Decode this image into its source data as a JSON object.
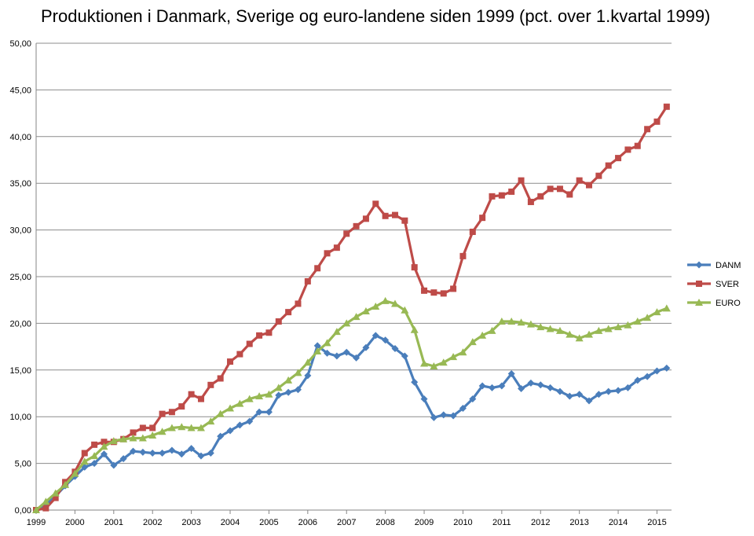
{
  "chart_data": {
    "type": "line",
    "title": "Produktionen i Danmark, Sverige og euro-landene siden 1999 (pct. over 1.kvartal 1999)",
    "ylim": [
      0,
      50
    ],
    "ytick_labels": [
      "0,00",
      "5,00",
      "10,00",
      "15,00",
      "20,00",
      "25,00",
      "30,00",
      "35,00",
      "40,00",
      "45,00",
      "50,00"
    ],
    "ytick_values": [
      0,
      5,
      10,
      15,
      20,
      25,
      30,
      35,
      40,
      45,
      50
    ],
    "xlim": [
      1999,
      2015.375
    ],
    "xtick_labels": [
      "1999",
      "2000",
      "2001",
      "2002",
      "2003",
      "2004",
      "2005",
      "2006",
      "2007",
      "2008",
      "2009",
      "2010",
      "2011",
      "2012",
      "2013",
      "2014",
      "2015"
    ],
    "xtick_values": [
      1999,
      2000,
      2001,
      2002,
      2003,
      2004,
      2005,
      2006,
      2007,
      2008,
      2009,
      2010,
      2011,
      2012,
      2013,
      2014,
      2015
    ],
    "grid": "horizontal",
    "legend_position": "right",
    "x": [
      1999.0,
      1999.25,
      1999.5,
      1999.75,
      2000.0,
      2000.25,
      2000.5,
      2000.75,
      2001.0,
      2001.25,
      2001.5,
      2001.75,
      2002.0,
      2002.25,
      2002.5,
      2002.75,
      2003.0,
      2003.25,
      2003.5,
      2003.75,
      2004.0,
      2004.25,
      2004.5,
      2004.75,
      2005.0,
      2005.25,
      2005.5,
      2005.75,
      2006.0,
      2006.25,
      2006.5,
      2006.75,
      2007.0,
      2007.25,
      2007.5,
      2007.75,
      2008.0,
      2008.25,
      2008.5,
      2008.75,
      2009.0,
      2009.25,
      2009.5,
      2009.75,
      2010.0,
      2010.25,
      2010.5,
      2010.75,
      2011.0,
      2011.25,
      2011.5,
      2011.75,
      2012.0,
      2012.25,
      2012.5,
      2012.75,
      2013.0,
      2013.25,
      2013.5,
      2013.75,
      2014.0,
      2014.25,
      2014.5,
      2014.75,
      2015.0,
      2015.25
    ],
    "series": [
      {
        "name": "DANM",
        "color": "#4a7ebb",
        "marker": "diamond",
        "values": [
          0.0,
          0.6,
          1.5,
          2.6,
          3.6,
          4.6,
          5.0,
          6.0,
          4.8,
          5.5,
          6.3,
          6.2,
          6.1,
          6.1,
          6.4,
          6.0,
          6.6,
          5.8,
          6.1,
          7.9,
          8.5,
          9.1,
          9.5,
          10.5,
          10.5,
          12.3,
          12.6,
          12.9,
          14.4,
          17.6,
          16.8,
          16.5,
          16.9,
          16.3,
          17.4,
          18.7,
          18.2,
          17.3,
          16.5,
          13.7,
          11.9,
          9.9,
          10.2,
          10.1,
          10.9,
          11.9,
          13.3,
          13.1,
          13.3,
          14.6,
          13.0,
          13.6,
          13.4,
          13.1,
          12.7,
          12.2,
          12.4,
          11.7,
          12.4,
          12.7,
          12.8,
          13.1,
          13.9,
          14.3,
          14.9,
          15.2
        ]
      },
      {
        "name": "SVER",
        "color": "#be4b48",
        "marker": "square",
        "values": [
          0.0,
          0.2,
          1.3,
          3.0,
          4.1,
          6.1,
          7.0,
          7.3,
          7.3,
          7.6,
          8.3,
          8.8,
          8.8,
          10.3,
          10.5,
          11.1,
          12.4,
          11.9,
          13.4,
          14.1,
          15.9,
          16.7,
          17.8,
          18.7,
          19.0,
          20.2,
          21.2,
          22.1,
          24.5,
          25.9,
          27.5,
          28.1,
          29.6,
          30.4,
          31.2,
          32.8,
          31.5,
          31.6,
          31.0,
          26.0,
          23.5,
          23.3,
          23.2,
          23.7,
          27.2,
          29.8,
          31.3,
          33.6,
          33.7,
          34.1,
          35.3,
          33.0,
          33.6,
          34.4,
          34.4,
          33.8,
          35.3,
          34.8,
          35.8,
          36.9,
          37.7,
          38.6,
          39.0,
          40.8,
          41.6,
          43.2
        ]
      },
      {
        "name": "EURO",
        "color": "#98b954",
        "marker": "triangle",
        "values": [
          0.0,
          0.9,
          1.8,
          2.7,
          3.9,
          5.2,
          5.8,
          6.8,
          7.4,
          7.6,
          7.7,
          7.7,
          8.0,
          8.4,
          8.8,
          8.9,
          8.8,
          8.8,
          9.5,
          10.3,
          10.9,
          11.4,
          11.9,
          12.2,
          12.4,
          13.1,
          13.9,
          14.7,
          15.8,
          17.0,
          17.9,
          19.1,
          20.0,
          20.7,
          21.3,
          21.8,
          22.4,
          22.1,
          21.4,
          19.3,
          15.7,
          15.4,
          15.8,
          16.4,
          16.9,
          18.0,
          18.7,
          19.2,
          20.2,
          20.2,
          20.1,
          19.9,
          19.6,
          19.4,
          19.2,
          18.8,
          18.4,
          18.8,
          19.2,
          19.4,
          19.6,
          19.8,
          20.2,
          20.6,
          21.2,
          21.6
        ]
      }
    ]
  }
}
